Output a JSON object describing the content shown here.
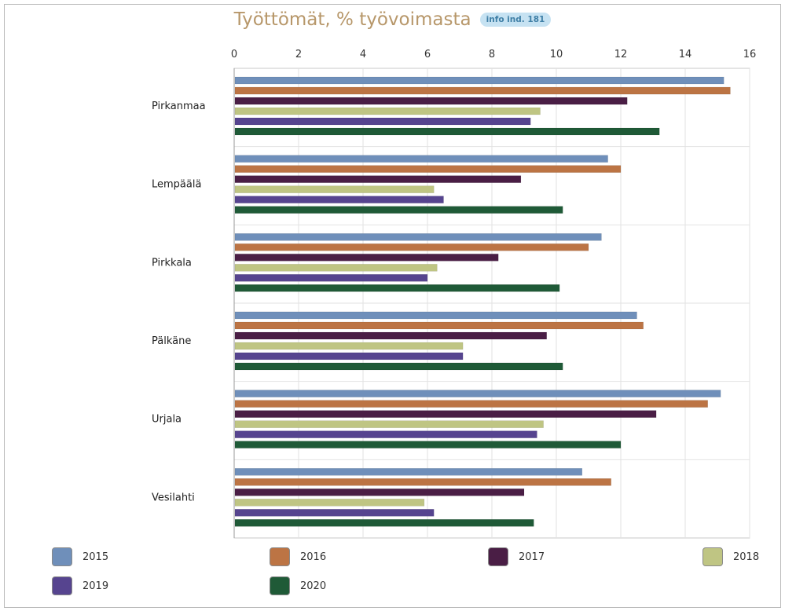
{
  "header": {
    "title": "Työttömät, % työvoimasta",
    "info_badge": "info ind. 181"
  },
  "chart_data": {
    "type": "bar",
    "orientation": "horizontal",
    "title": "Työttömät, % työvoimasta",
    "xlabel": "",
    "ylabel": "",
    "xlim": [
      0,
      16
    ],
    "x_ticks": [
      "0",
      "2",
      "4",
      "6",
      "8",
      "10",
      "12",
      "14",
      "16"
    ],
    "grid": true,
    "legend_position": "bottom",
    "categories": [
      "Pirkanmaa",
      "Lempäälä",
      "Pirkkala",
      "Pälkäne",
      "Urjala",
      "Vesilahti"
    ],
    "series": [
      {
        "name": "2015",
        "color": "#6f8fba",
        "values": [
          15.2,
          11.6,
          11.4,
          12.5,
          15.1,
          10.8
        ]
      },
      {
        "name": "2016",
        "color": "#bc7444",
        "values": [
          15.4,
          12.0,
          11.0,
          12.7,
          14.7,
          11.7
        ]
      },
      {
        "name": "2017",
        "color": "#4a1e45",
        "values": [
          12.2,
          8.9,
          8.2,
          9.7,
          13.1,
          9.0
        ]
      },
      {
        "name": "2018",
        "color": "#bfc583",
        "values": [
          9.5,
          6.2,
          6.3,
          7.1,
          9.6,
          5.9
        ]
      },
      {
        "name": "2019",
        "color": "#56448f",
        "values": [
          9.2,
          6.5,
          6.0,
          7.1,
          9.4,
          6.2
        ]
      },
      {
        "name": "2020",
        "color": "#1f5a37",
        "values": [
          13.2,
          10.2,
          10.1,
          10.2,
          12.0,
          9.3
        ]
      }
    ]
  }
}
